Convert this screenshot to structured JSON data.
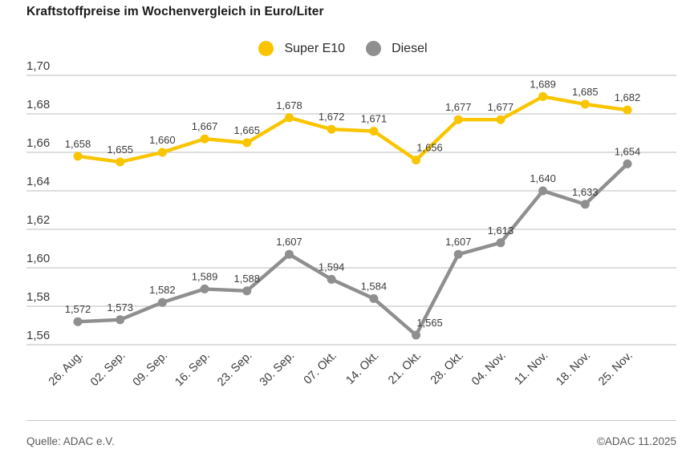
{
  "header": {
    "title": "Kraftstoffpreise im Wochenvergleich in Euro/Liter"
  },
  "footer": {
    "source": "Quelle: ADAC e.V.",
    "copyright": "©ADAC 11.2025"
  },
  "colors": {
    "super_e10": "#f9c500",
    "diesel": "#8f8f8f",
    "grid": "#c9c9c9",
    "tick_text": "#3c3c3c",
    "point_label_text": "#3c3c3c"
  },
  "chart_data": {
    "type": "line",
    "title": "Kraftstoffpreise im Wochenvergleich in Euro/Liter",
    "xlabel": "",
    "ylabel": "Euro/Liter",
    "x": [
      "26. Aug.",
      "02. Sep.",
      "09. Sep.",
      "16. Sep.",
      "23. Sep.",
      "30. Sep.",
      "07. Okt.",
      "14. Okt.",
      "21. Okt.",
      "28. Okt.",
      "04. Nov.",
      "11. Nov.",
      "18. Nov.",
      "25. Nov."
    ],
    "series": [
      {
        "name": "Super E10",
        "color": "#f9c500",
        "values": [
          1.658,
          1.655,
          1.66,
          1.667,
          1.665,
          1.678,
          1.672,
          1.671,
          1.656,
          1.677,
          1.677,
          1.689,
          1.685,
          1.682
        ],
        "point_labels": [
          "1,658",
          "1,655",
          "1,660",
          "1,667",
          "1,665",
          "1,678",
          "1,672",
          "1,671",
          "1,656",
          "1,677",
          "1,677",
          "1,689",
          "1,685",
          "1,682"
        ],
        "label_dx_overrides": {
          "8": 17
        }
      },
      {
        "name": "Diesel",
        "color": "#8f8f8f",
        "values": [
          1.572,
          1.573,
          1.582,
          1.589,
          1.588,
          1.607,
          1.594,
          1.584,
          1.565,
          1.607,
          1.613,
          1.64,
          1.633,
          1.654
        ],
        "point_labels": [
          "1,572",
          "1,573",
          "1,582",
          "1,589",
          "1,588",
          "1,607",
          "1,594",
          "1,584",
          "1,565",
          "1,607",
          "1,613",
          "1,640",
          "1,633",
          "1,654"
        ],
        "label_dx_overrides": {
          "8": 17
        }
      }
    ],
    "ylim": [
      1.56,
      1.7
    ],
    "yticks": [
      "1,70",
      "1,68",
      "1,66",
      "1,64",
      "1,62",
      "1,60",
      "1,58",
      "1,56"
    ],
    "ytick_step": 0.02,
    "grid": true,
    "legend_position": "top-center"
  }
}
